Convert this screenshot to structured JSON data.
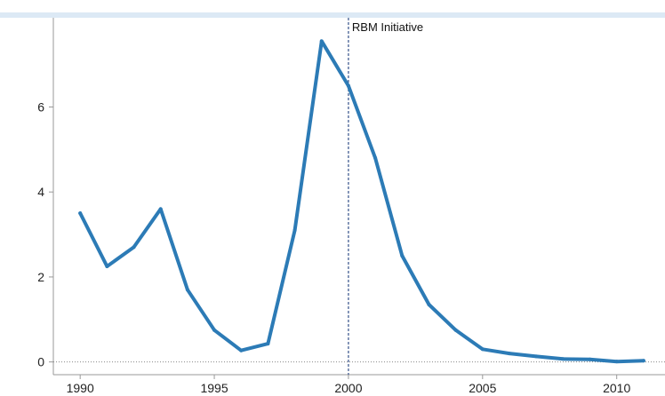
{
  "chart_data": {
    "type": "line",
    "title": "",
    "xlabel": "",
    "ylabel": "",
    "x": [
      1990,
      1991,
      1992,
      1993,
      1994,
      1995,
      1996,
      1997,
      1998,
      1999,
      2000,
      2001,
      2002,
      2003,
      2004,
      2005,
      2006,
      2007,
      2008,
      2009,
      2010,
      2011
    ],
    "series": [
      {
        "values": [
          3.5,
          2.25,
          2.7,
          3.6,
          1.7,
          0.75,
          0.27,
          0.43,
          3.1,
          7.55,
          6.5,
          4.8,
          2.5,
          1.35,
          0.75,
          0.3,
          0.2,
          0.13,
          0.07,
          0.06,
          0.01,
          0.03
        ]
      }
    ],
    "xlim": [
      1989,
      2011.8
    ],
    "ylim": [
      -0.3,
      8.1
    ],
    "xticks": [
      "1990",
      "1995",
      "2000",
      "2005",
      "2010"
    ],
    "yticks": [
      "0",
      "2",
      "4",
      "6"
    ],
    "annotation": {
      "label": "RBM Initiative",
      "x": 2000
    },
    "zero_line": true,
    "grid": false,
    "colors": {
      "line": "#2c7bb6",
      "annotation_line": "#35518a",
      "zero_line": "#888888",
      "axis": "#999999"
    }
  }
}
